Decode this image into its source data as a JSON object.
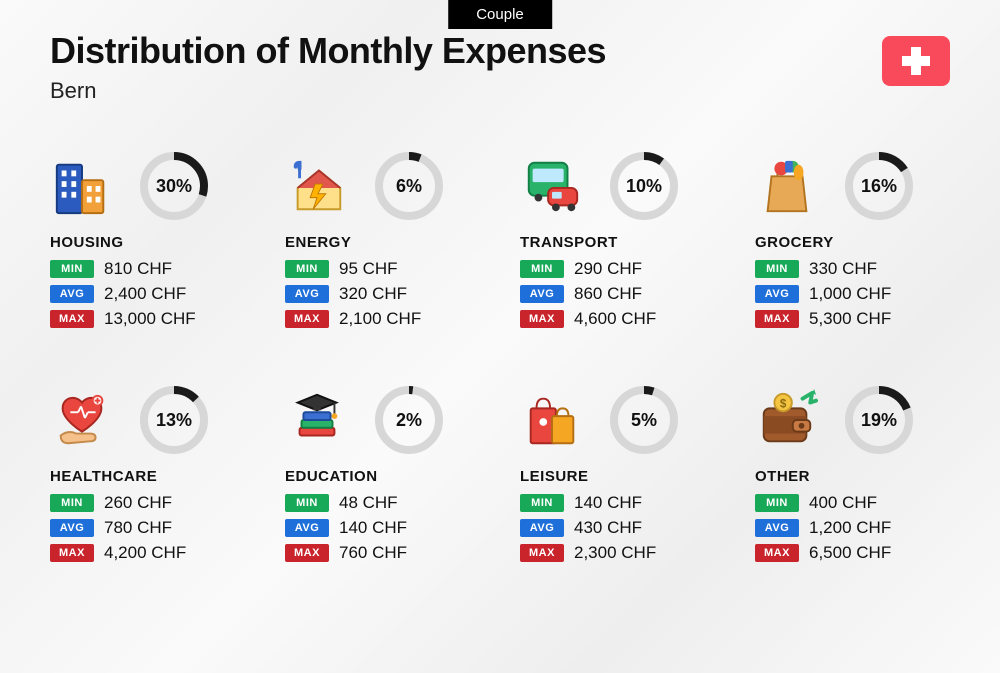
{
  "header": {
    "badge": "Couple",
    "title": "Distribution of Monthly Expenses",
    "subtitle": "Bern",
    "flag_color": "#f84a5b"
  },
  "labels": {
    "min": "MIN",
    "avg": "AVG",
    "max": "MAX"
  },
  "colors": {
    "min_badge": "#17a858",
    "avg_badge": "#1e6fd9",
    "max_badge": "#c9232b",
    "donut_track": "#d7d7d7",
    "donut_fill": "#1a1a1a",
    "text": "#111111",
    "background": "#f5f5f5"
  },
  "donut": {
    "stroke_width": 8,
    "radius": 30
  },
  "currency_suffix": " CHF",
  "categories": [
    {
      "key": "housing",
      "name": "HOUSING",
      "percent": 30,
      "min": "810",
      "avg": "2,400",
      "max": "13,000"
    },
    {
      "key": "energy",
      "name": "ENERGY",
      "percent": 6,
      "min": "95",
      "avg": "320",
      "max": "2,100"
    },
    {
      "key": "transport",
      "name": "TRANSPORT",
      "percent": 10,
      "min": "290",
      "avg": "860",
      "max": "4,600"
    },
    {
      "key": "grocery",
      "name": "GROCERY",
      "percent": 16,
      "min": "330",
      "avg": "1,000",
      "max": "5,300"
    },
    {
      "key": "healthcare",
      "name": "HEALTHCARE",
      "percent": 13,
      "min": "260",
      "avg": "780",
      "max": "4,200"
    },
    {
      "key": "education",
      "name": "EDUCATION",
      "percent": 2,
      "min": "48",
      "avg": "140",
      "max": "760"
    },
    {
      "key": "leisure",
      "name": "LEISURE",
      "percent": 5,
      "min": "140",
      "avg": "430",
      "max": "2,300"
    },
    {
      "key": "other",
      "name": "OTHER",
      "percent": 19,
      "min": "400",
      "avg": "1,200",
      "max": "6,500"
    }
  ],
  "icons": {
    "housing": {
      "type": "buildings"
    },
    "energy": {
      "type": "house-bolt"
    },
    "transport": {
      "type": "bus-car"
    },
    "grocery": {
      "type": "grocery-bag"
    },
    "healthcare": {
      "type": "heart-hand"
    },
    "education": {
      "type": "books-cap"
    },
    "leisure": {
      "type": "shopping-bags"
    },
    "other": {
      "type": "wallet"
    }
  }
}
